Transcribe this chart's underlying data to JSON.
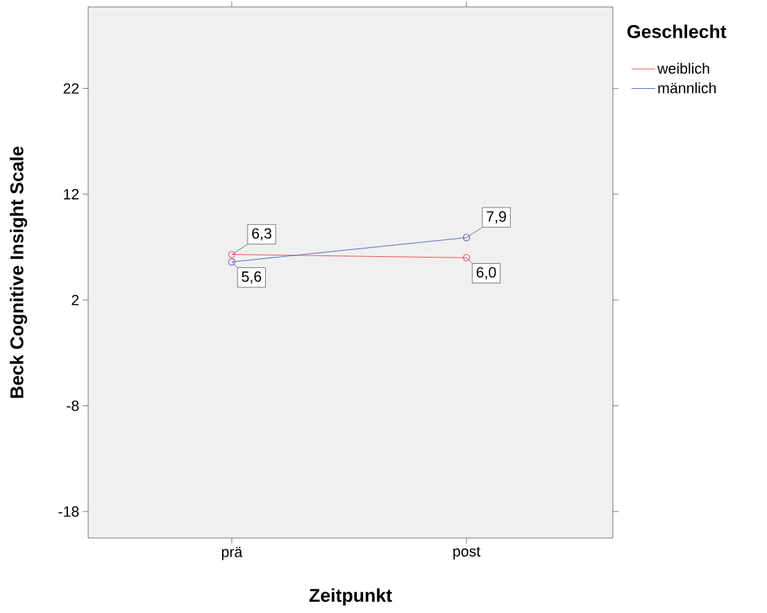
{
  "chart_data": {
    "type": "line",
    "xlabel": "Zeitpunkt",
    "ylabel": "Beck Cognitive Insight Scale",
    "legend_title": "Geschlecht",
    "categories": [
      "prä",
      "post"
    ],
    "series": [
      {
        "name": "weiblich",
        "color": "#ee4f57",
        "values": [
          6.3,
          6.0
        ],
        "value_labels": [
          "6,3",
          "6,0"
        ]
      },
      {
        "name": "männlich",
        "color": "#5468bd",
        "values": [
          5.6,
          7.9
        ],
        "value_labels": [
          "5,6",
          "7,9"
        ]
      }
    ],
    "ylim": [
      -20.5,
      29.7
    ],
    "yticks": [
      -18,
      -8,
      2,
      12,
      22
    ],
    "legend": "top right",
    "marker": "circle",
    "line_style": "solid"
  }
}
